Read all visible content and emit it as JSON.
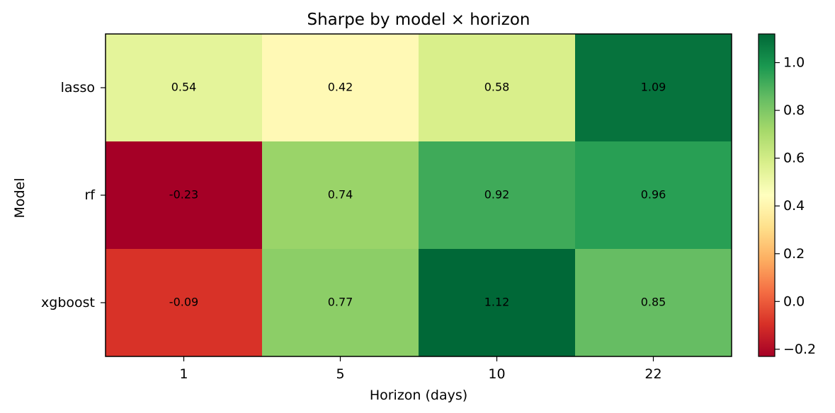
{
  "chart_data": {
    "type": "heatmap",
    "title": "Sharpe by model × horizon",
    "xlabel": "Horizon (days)",
    "ylabel": "Model",
    "x_categories": [
      "1",
      "5",
      "10",
      "22"
    ],
    "y_categories": [
      "lasso",
      "rf",
      "xgboost"
    ],
    "values": [
      [
        0.54,
        0.42,
        0.58,
        1.09
      ],
      [
        -0.23,
        0.74,
        0.92,
        0.96
      ],
      [
        -0.09,
        0.77,
        1.12,
        0.85
      ]
    ],
    "value_labels": [
      [
        "0.54",
        "0.42",
        "0.58",
        "1.09"
      ],
      [
        "-0.23",
        "0.74",
        "0.92",
        "0.96"
      ],
      [
        "-0.09",
        "0.77",
        "1.12",
        "0.85"
      ]
    ],
    "colormap": "RdYlGn",
    "color_range": [
      -0.23,
      1.12
    ],
    "colorbar_ticks": [
      -0.2,
      0.0,
      0.2,
      0.4,
      0.6,
      0.8,
      1.0
    ],
    "colorbar_tick_labels": [
      "−0.2",
      "0.0",
      "0.2",
      "0.4",
      "0.6",
      "0.8",
      "1.0"
    ],
    "grid": false,
    "legend": "colorbar-right"
  }
}
